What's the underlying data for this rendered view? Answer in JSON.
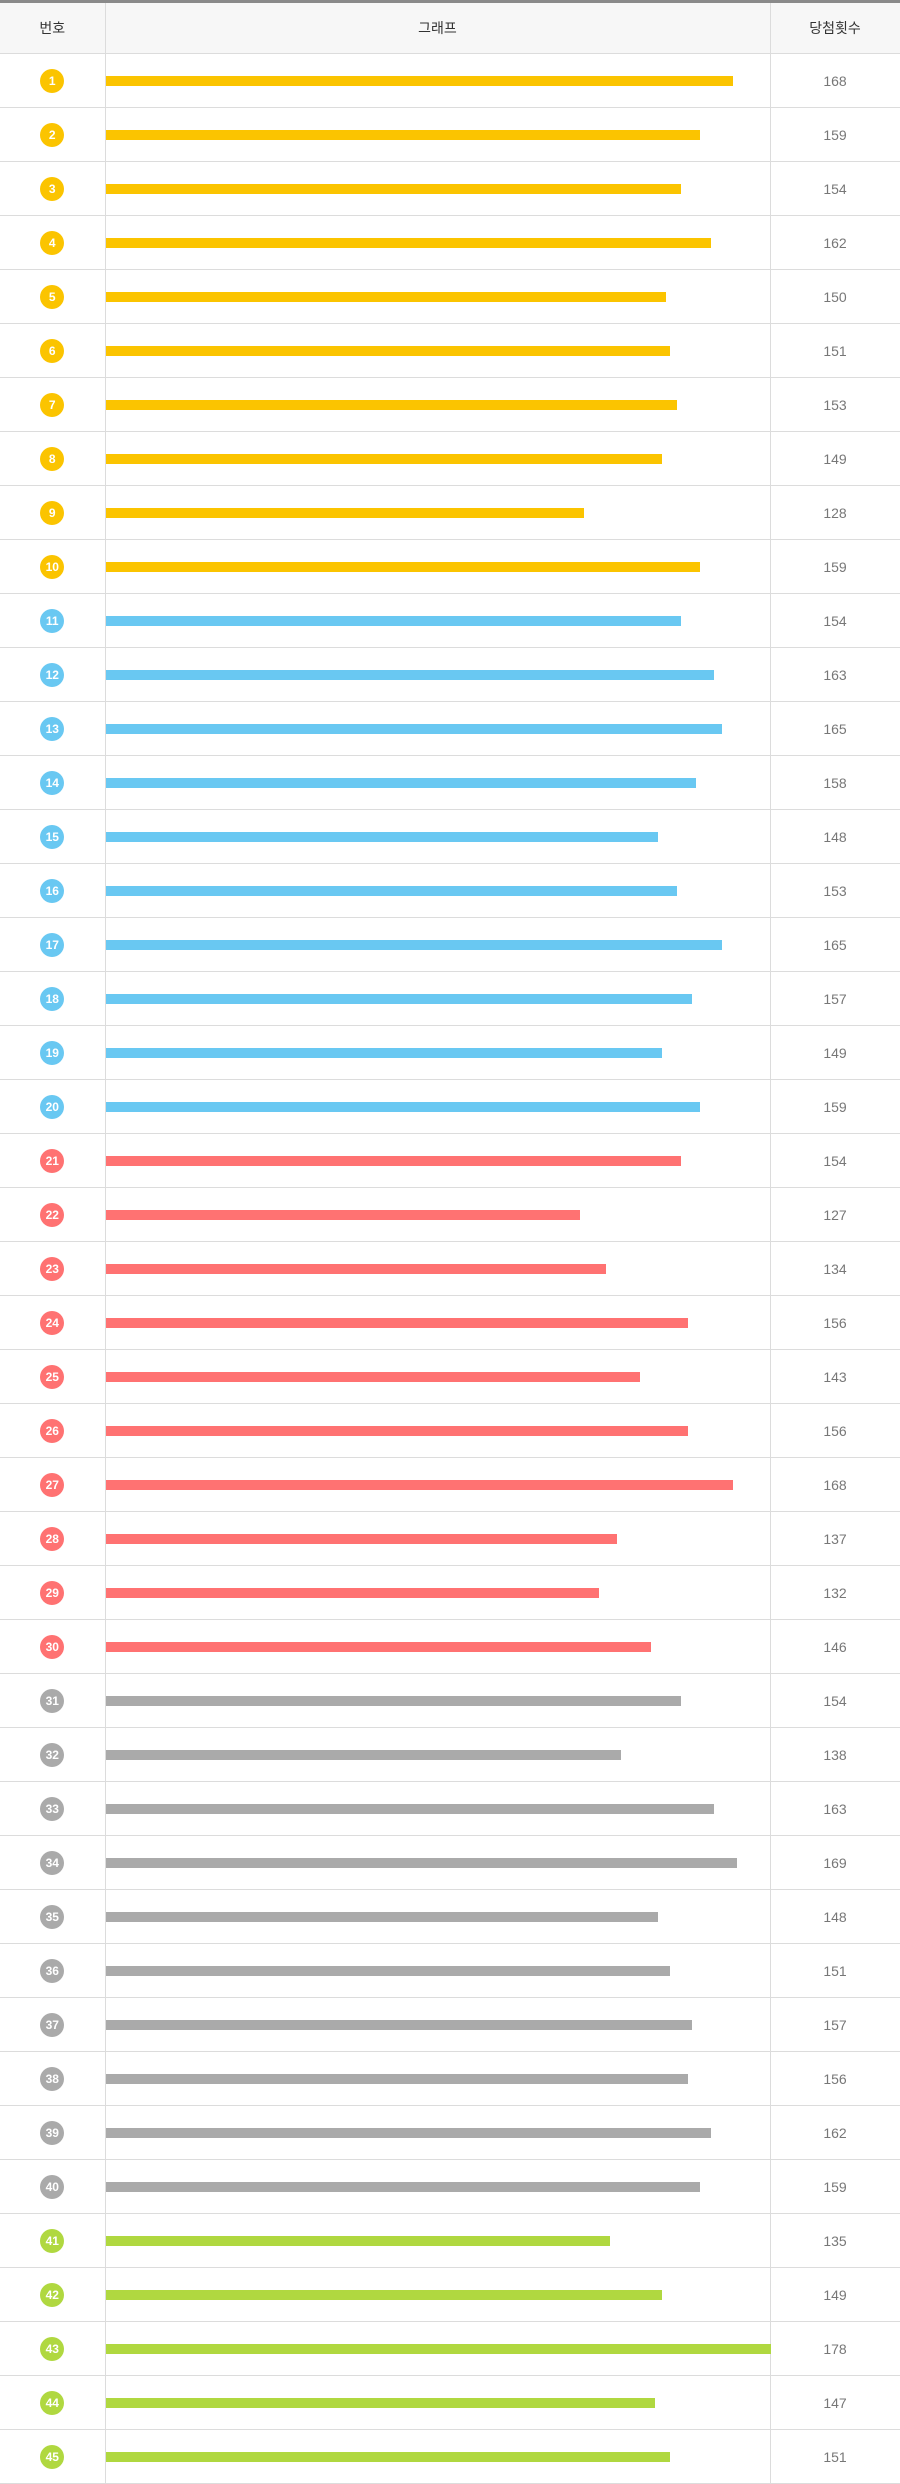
{
  "header": {
    "num_label": "번호",
    "graph_label": "그래프",
    "count_label": "당첨횟수"
  },
  "colors": {
    "1-10": "#fbc400",
    "11-20": "#69c8f2",
    "21-30": "#ff7272",
    "31-40": "#aaaaaa",
    "41-45": "#b0d840"
  },
  "chart_data": {
    "type": "bar",
    "orientation": "horizontal",
    "xlim": [
      0,
      178
    ],
    "categories": [
      "1",
      "2",
      "3",
      "4",
      "5",
      "6",
      "7",
      "8",
      "9",
      "10",
      "11",
      "12",
      "13",
      "14",
      "15",
      "16",
      "17",
      "18",
      "19",
      "20",
      "21",
      "22",
      "23",
      "24",
      "25",
      "26",
      "27",
      "28",
      "29",
      "30",
      "31",
      "32",
      "33",
      "34",
      "35",
      "36",
      "37",
      "38",
      "39",
      "40",
      "41",
      "42",
      "43",
      "44",
      "45"
    ],
    "values": [
      168,
      159,
      154,
      162,
      150,
      151,
      153,
      149,
      128,
      159,
      154,
      163,
      165,
      158,
      148,
      153,
      165,
      157,
      149,
      159,
      154,
      127,
      134,
      156,
      143,
      156,
      168,
      137,
      132,
      146,
      154,
      138,
      163,
      169,
      148,
      151,
      157,
      156,
      162,
      159,
      135,
      149,
      178,
      147,
      151
    ]
  }
}
